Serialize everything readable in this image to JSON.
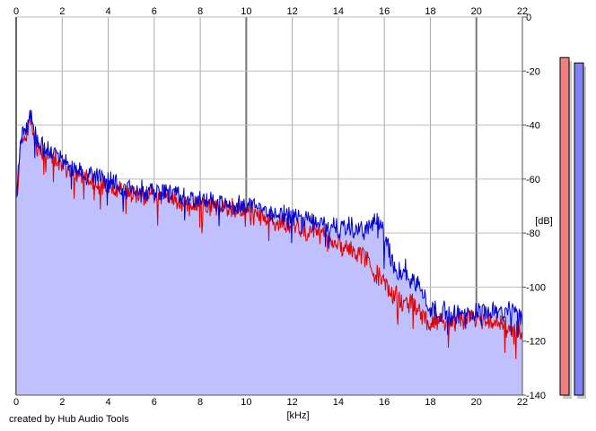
{
  "credit": "created by Hub Audio Tools",
  "chart_data": {
    "type": "area",
    "xlabel": "[kHz]",
    "ylabel": "[dB]",
    "xlim": [
      0,
      22
    ],
    "ylim": [
      -140,
      0
    ],
    "x_ticks": [
      0,
      2,
      4,
      6,
      8,
      10,
      12,
      14,
      16,
      18,
      20,
      22
    ],
    "y_ticks": [
      0,
      -20,
      -40,
      -60,
      -80,
      -100,
      -120,
      -140
    ],
    "grid": true,
    "fill_color": "#c0c0ff",
    "series": [
      {
        "color": "#0000d0",
        "x": [
          0.0,
          0.05,
          0.1,
          0.2,
          0.3,
          0.4,
          0.5,
          0.6,
          0.7,
          0.8,
          0.9,
          1.0,
          1.2,
          1.4,
          1.6,
          1.8,
          2.0,
          2.2,
          2.4,
          2.6,
          2.8,
          3.0,
          3.2,
          3.4,
          3.6,
          3.8,
          4.0,
          4.5,
          5.0,
          5.5,
          6.0,
          6.5,
          7.0,
          7.5,
          8.0,
          8.5,
          9.0,
          9.5,
          10.0,
          10.5,
          11.0,
          11.5,
          12.0,
          12.5,
          13.0,
          13.5,
          14.0,
          14.5,
          15.0,
          15.3,
          15.5,
          15.7,
          15.9,
          16.1,
          16.3,
          16.6,
          17.0,
          17.3,
          17.6,
          17.8,
          18.0,
          18.5,
          19.0,
          19.5,
          20.0,
          20.5,
          21.0,
          21.5,
          21.8,
          22.0
        ],
        "y": [
          -62,
          -66,
          -55,
          -46,
          -42,
          -44,
          -38,
          -34,
          -40,
          -43,
          -46,
          -47,
          -48,
          -49,
          -50,
          -51,
          -53,
          -54,
          -55,
          -56,
          -57,
          -58,
          -58,
          -59,
          -60,
          -60,
          -61,
          -62,
          -63,
          -64,
          -65,
          -65,
          -66,
          -67,
          -68,
          -68,
          -69,
          -69,
          -70,
          -71,
          -72,
          -73,
          -74,
          -75,
          -76,
          -77,
          -78,
          -78,
          -79,
          -78,
          -76,
          -77,
          -79,
          -84,
          -90,
          -93,
          -95,
          -98,
          -101,
          -104,
          -108,
          -109,
          -110,
          -110,
          -109,
          -108,
          -108,
          -109,
          -110,
          -112
        ]
      },
      {
        "color": "#e00000",
        "x": [
          0.0,
          0.05,
          0.1,
          0.2,
          0.3,
          0.4,
          0.5,
          0.6,
          0.7,
          0.8,
          0.9,
          1.0,
          1.2,
          1.4,
          1.6,
          1.8,
          2.0,
          2.2,
          2.4,
          2.6,
          2.8,
          3.0,
          3.2,
          3.4,
          3.6,
          3.8,
          4.0,
          4.5,
          5.0,
          5.5,
          6.0,
          6.5,
          7.0,
          7.5,
          8.0,
          8.5,
          9.0,
          9.5,
          10.0,
          10.5,
          11.0,
          11.5,
          12.0,
          12.5,
          13.0,
          13.5,
          14.0,
          14.5,
          15.0,
          15.3,
          15.5,
          15.7,
          15.9,
          16.1,
          16.3,
          16.6,
          17.0,
          17.3,
          17.6,
          17.8,
          18.0,
          18.5,
          19.0,
          19.5,
          20.0,
          20.5,
          21.0,
          21.5,
          21.8,
          22.0
        ],
        "y": [
          -64,
          -68,
          -57,
          -48,
          -44,
          -46,
          -41,
          -38,
          -42,
          -45,
          -48,
          -49,
          -50,
          -51,
          -52,
          -53,
          -55,
          -56,
          -57,
          -58,
          -59,
          -60,
          -60,
          -61,
          -62,
          -62,
          -63,
          -64,
          -65,
          -66,
          -67,
          -67,
          -68,
          -69,
          -70,
          -70,
          -71,
          -71,
          -72,
          -73,
          -75,
          -76,
          -77,
          -79,
          -80,
          -82,
          -84,
          -86,
          -88,
          -90,
          -93,
          -96,
          -98,
          -100,
          -102,
          -104,
          -105,
          -107,
          -110,
          -112,
          -113,
          -113,
          -113,
          -112,
          -112,
          -113,
          -114,
          -115,
          -116,
          -117
        ]
      }
    ],
    "level_bars": [
      {
        "color": "#f08080",
        "value": -15
      },
      {
        "color": "#8080f0",
        "value": -17
      }
    ]
  }
}
